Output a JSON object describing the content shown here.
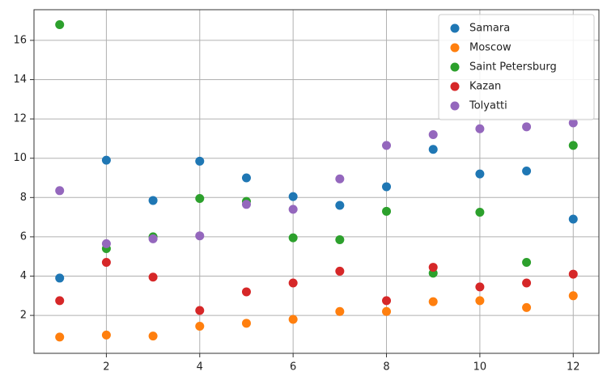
{
  "chart_data": {
    "type": "scatter",
    "x": [
      1,
      2,
      3,
      4,
      5,
      6,
      7,
      8,
      9,
      10,
      11,
      12
    ],
    "series": [
      {
        "name": "Samara",
        "color": "#1f77b4",
        "values": [
          3.9,
          9.9,
          7.85,
          9.85,
          9.0,
          8.05,
          7.6,
          8.55,
          10.45,
          9.2,
          9.35,
          6.9
        ]
      },
      {
        "name": "Moscow",
        "color": "#ff7f0e",
        "values": [
          0.9,
          1.0,
          0.95,
          1.45,
          1.6,
          1.8,
          2.2,
          2.2,
          2.7,
          2.75,
          2.4,
          3.0
        ]
      },
      {
        "name": "Saint Petersburg",
        "color": "#2ca02c",
        "values": [
          16.8,
          5.4,
          6.0,
          7.95,
          7.8,
          5.95,
          5.85,
          7.3,
          4.15,
          7.25,
          4.7,
          10.65
        ]
      },
      {
        "name": "Kazan",
        "color": "#d62728",
        "values": [
          2.75,
          4.7,
          3.95,
          2.25,
          3.2,
          3.65,
          4.25,
          2.75,
          4.45,
          3.45,
          3.65,
          4.1
        ]
      },
      {
        "name": "Tolyatti",
        "color": "#9467bd",
        "values": [
          8.35,
          5.65,
          5.9,
          6.05,
          7.65,
          7.4,
          8.95,
          10.65,
          11.2,
          11.5,
          11.6,
          11.8
        ]
      }
    ],
    "xlim": [
      0.45,
      12.55
    ],
    "xticks": [
      2,
      4,
      6,
      8,
      10,
      12
    ],
    "ylim": [
      0.07,
      17.56
    ],
    "yticks": [
      2,
      4,
      6,
      8,
      10,
      12,
      14,
      16
    ],
    "grid": true,
    "legend": "upper right"
  }
}
